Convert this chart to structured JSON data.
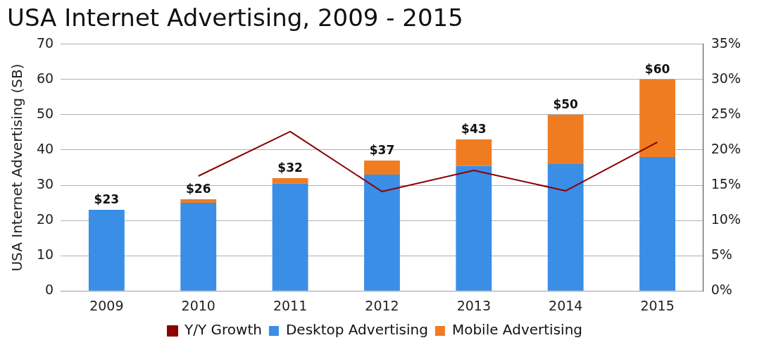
{
  "chart_data": {
    "type": "bar",
    "title": "USA Internet Advertising, 2009 - 2015",
    "ylabel": "USA Internet Advertising (SB)",
    "categories": [
      "2009",
      "2010",
      "2011",
      "2012",
      "2013",
      "2014",
      "2015"
    ],
    "stacked": true,
    "series": [
      {
        "name": "Desktop Advertising",
        "color": "#3a8ee6",
        "values": [
          23,
          25,
          30.5,
          33,
          35.5,
          36,
          38
        ]
      },
      {
        "name": "Mobile Advertising",
        "color": "#f07c22",
        "values": [
          null,
          1,
          1.5,
          4,
          7.5,
          14,
          22
        ]
      },
      {
        "name": "Y/Y Growth",
        "type": "line",
        "axis": "y2",
        "color": "#8b0000",
        "values": [
          null,
          16.3,
          22.6,
          14.1,
          17.1,
          14.2,
          21.1
        ]
      }
    ],
    "totals": [
      "$23",
      "$26",
      "$32",
      "$37",
      "$43",
      "$50",
      "$60"
    ],
    "ylim": [
      0,
      70
    ],
    "yticks": [
      0,
      10,
      20,
      30,
      40,
      50,
      60,
      70
    ],
    "y2lim": [
      0,
      35
    ],
    "y2ticks": [
      {
        "value": 0,
        "label": "0%"
      },
      {
        "value": 5,
        "label": "5%"
      },
      {
        "value": 10,
        "label": "10%"
      },
      {
        "value": 15,
        "label": "15%"
      },
      {
        "value": 20,
        "label": "20%"
      },
      {
        "value": 25,
        "label": "25%"
      },
      {
        "value": 30,
        "label": "30%"
      },
      {
        "value": 35,
        "label": "35%"
      }
    ],
    "grid": "y",
    "legend": "bottom",
    "marker": "none",
    "line_style": "solid"
  }
}
